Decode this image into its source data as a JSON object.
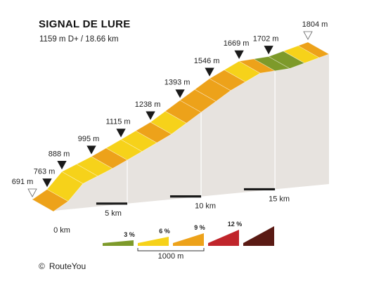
{
  "title": "SIGNAL DE LURE",
  "subtitle": "1159 m D+ / 18.66 km",
  "copyright": {
    "symbol": "©",
    "text": "RouteYou"
  },
  "chart_data": {
    "type": "area",
    "title": "SIGNAL DE LURE",
    "total_distance_km": 18.66,
    "elevation_gain_m": 1159,
    "distance_ticks": [
      {
        "km": 0,
        "label": "0 km"
      },
      {
        "km": 5,
        "label": "5 km"
      },
      {
        "km": 10,
        "label": "10 km"
      },
      {
        "km": 15,
        "label": "15 km"
      }
    ],
    "elevation_markers": [
      {
        "km": 0,
        "elevation": 691,
        "label": "691 m",
        "kind": "start"
      },
      {
        "km": 1,
        "elevation": 763,
        "label": "763 m"
      },
      {
        "km": 2,
        "elevation": 888,
        "label": "888 m"
      },
      {
        "km": 4,
        "elevation": 995,
        "label": "995 m"
      },
      {
        "km": 6,
        "elevation": 1115,
        "label": "1115 m"
      },
      {
        "km": 8,
        "elevation": 1238,
        "label": "1238 m"
      },
      {
        "km": 10,
        "elevation": 1393,
        "label": "1393 m"
      },
      {
        "km": 12,
        "elevation": 1546,
        "label": "1546 m"
      },
      {
        "km": 14,
        "elevation": 1669,
        "label": "1669 m"
      },
      {
        "km": 16,
        "elevation": 1702,
        "label": "1702 m"
      },
      {
        "km": 18.66,
        "elevation": 1804,
        "label": "1804 m",
        "kind": "summit"
      }
    ],
    "segments": [
      {
        "from_km": 0,
        "to_km": 1,
        "class": "9%"
      },
      {
        "from_km": 1,
        "to_km": 2,
        "class": "6%"
      },
      {
        "from_km": 2,
        "to_km": 3,
        "class": "6%"
      },
      {
        "from_km": 3,
        "to_km": 4,
        "class": "6%"
      },
      {
        "from_km": 4,
        "to_km": 5,
        "class": "9%"
      },
      {
        "from_km": 5,
        "to_km": 6,
        "class": "6%"
      },
      {
        "from_km": 6,
        "to_km": 7,
        "class": "6%"
      },
      {
        "from_km": 7,
        "to_km": 8,
        "class": "9%"
      },
      {
        "from_km": 8,
        "to_km": 9,
        "class": "6%"
      },
      {
        "from_km": 9,
        "to_km": 10,
        "class": "9%"
      },
      {
        "from_km": 10,
        "to_km": 11,
        "class": "9%"
      },
      {
        "from_km": 11,
        "to_km": 12,
        "class": "9%"
      },
      {
        "from_km": 12,
        "to_km": 13,
        "class": "9%"
      },
      {
        "from_km": 13,
        "to_km": 14,
        "class": "6%"
      },
      {
        "from_km": 14,
        "to_km": 15,
        "class": "9%"
      },
      {
        "from_km": 15,
        "to_km": 16,
        "class": "3%"
      },
      {
        "from_km": 16,
        "to_km": 17,
        "class": "3%"
      },
      {
        "from_km": 17,
        "to_km": 18,
        "class": "6%"
      },
      {
        "from_km": 18,
        "to_km": 18.66,
        "class": "9%"
      }
    ],
    "legend": {
      "distance_label": "1000 m",
      "classes": [
        {
          "label": "3 %",
          "color": "#7d9a2a"
        },
        {
          "label": "6 %",
          "color": "#f6d21a"
        },
        {
          "label": "9 %",
          "color": "#eda21a"
        },
        {
          "label": "12 %",
          "color": "#c0252b"
        },
        {
          "label": "",
          "color": "#5a1a14"
        }
      ]
    },
    "colors": {
      "3%": "#7d9a2a",
      "6%": "#f6d21a",
      "9%": "#eda21a",
      "12%": "#c0252b",
      "side": "#e7e3df",
      "edge": "#bdb8b3",
      "marker": "#1a1a1a"
    }
  }
}
